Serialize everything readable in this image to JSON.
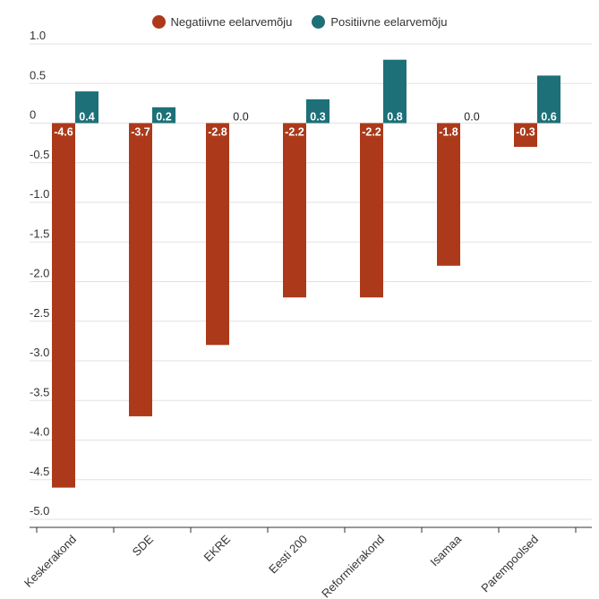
{
  "chart_data": {
    "type": "bar",
    "title": "",
    "xlabel": "",
    "ylabel": "",
    "categories": [
      "Keskerakond",
      "SDE",
      "EKRE",
      "Eesti 200",
      "Reformierakond",
      "Isamaa",
      "Parempoolsed"
    ],
    "series": [
      {
        "name": "Negatiivne eelarvemõju",
        "color": "#ac3a1a",
        "values": [
          -4.6,
          -3.7,
          -2.8,
          -2.2,
          -2.2,
          -1.8,
          -0.3
        ],
        "labels": [
          "-4.6",
          "-3.7",
          "-2.8",
          "-2.2",
          "-2.2",
          "-1.8",
          "-0.3"
        ]
      },
      {
        "name": "Positiivne eelarvemõju",
        "color": "#1d7077",
        "values": [
          0.4,
          0.2,
          0.0,
          0.3,
          0.8,
          0.0,
          0.6
        ],
        "labels": [
          "0.4",
          "0.2",
          "0.0",
          "0.3",
          "0.8",
          "0.0",
          "0.6"
        ]
      }
    ],
    "yticks": [
      1.0,
      0.5,
      0,
      -0.5,
      -1.0,
      -1.5,
      -2.0,
      -2.5,
      -3.0,
      -3.5,
      -4.0,
      -4.5,
      -5.0
    ],
    "ytick_labels": [
      "1.0",
      "0.5",
      "0",
      "-0.5",
      "-1.0",
      "-1.5",
      "-2.0",
      "-2.5",
      "-3.0",
      "-3.5",
      "-4.0",
      "-4.5",
      "-5.0"
    ],
    "ylim": [
      -5.0,
      1.0
    ],
    "grid": true,
    "legend_position": "top-center"
  }
}
